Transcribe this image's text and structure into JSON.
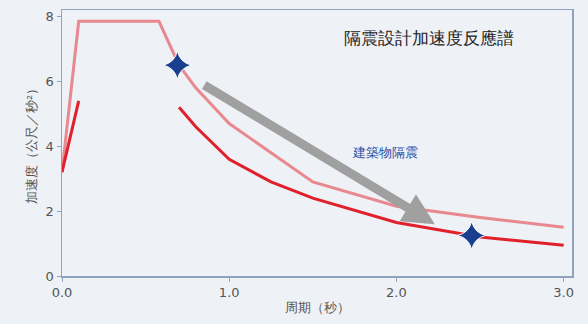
{
  "chart_data": {
    "type": "line",
    "title": "隔震設計加速度反應譜",
    "x_label": "周期（秒）",
    "y_label": "加速度（公尺／秒²）",
    "xlim": [
      0,
      3.05
    ],
    "ylim": [
      0,
      8.2
    ],
    "xticks": [
      {
        "value": 0,
        "label": "0.0"
      },
      {
        "value": 1,
        "label": "1.0"
      },
      {
        "value": 2,
        "label": "2.0"
      },
      {
        "value": 3,
        "label": "3.0"
      }
    ],
    "yticks": [
      0,
      2,
      4,
      6,
      8
    ],
    "grid": false,
    "annotations": [
      {
        "text": "建築物隔震",
        "x": 1.93,
        "y": 3.8
      }
    ],
    "series": [
      {
        "type": "line",
        "color": "#e8898f",
        "x": [
          0,
          0.1,
          0.58,
          0.7,
          0.8,
          1.0,
          1.25,
          1.5,
          2.0,
          2.5,
          3.0
        ],
        "values": [
          3.2,
          7.85,
          7.85,
          6.5,
          5.8,
          4.7,
          3.8,
          2.9,
          2.15,
          1.8,
          1.5
        ]
      },
      {
        "type": "line",
        "color": "#e0202a",
        "x": [
          0,
          0.1,
          0.15,
          0.7,
          0.8,
          1.0,
          1.25,
          1.5,
          2.0,
          2.5,
          3.0
        ],
        "values": [
          3.2,
          5.4,
          null,
          5.2,
          4.6,
          3.6,
          2.9,
          2.4,
          1.65,
          1.2,
          0.95
        ]
      },
      {
        "type": "scatter",
        "color": "#1a3f8f",
        "marker": "star-diamond",
        "x": [
          0.69,
          2.45
        ],
        "values": [
          6.5,
          1.25
        ]
      }
    ]
  }
}
